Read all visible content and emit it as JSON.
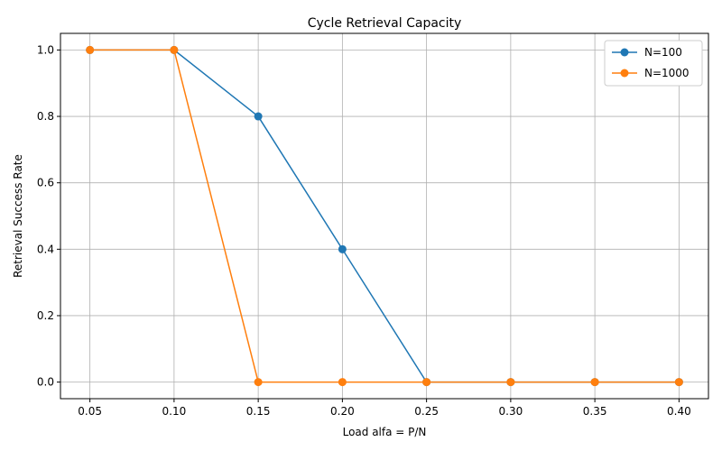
{
  "chart_data": {
    "type": "line",
    "title": "Cycle Retrieval Capacity",
    "xlabel": "Load alfa = P/N",
    "ylabel": "Retrieval Success Rate",
    "x": [
      0.05,
      0.1,
      0.15,
      0.2,
      0.25,
      0.3,
      0.35,
      0.4
    ],
    "x_ticks": [
      "0.05",
      "0.10",
      "0.15",
      "0.20",
      "0.25",
      "0.30",
      "0.35",
      "0.40"
    ],
    "y_ticks": [
      "0.0",
      "0.2",
      "0.4",
      "0.6",
      "0.8",
      "1.0"
    ],
    "xlim": [
      0.0325,
      0.4175
    ],
    "ylim": [
      -0.05,
      1.05
    ],
    "grid": true,
    "legend_position": "top-right",
    "series": [
      {
        "name": "N=100",
        "color": "#1f77b4",
        "values": [
          1.0,
          1.0,
          0.8,
          0.4,
          0.0,
          0.0,
          0.0,
          0.0
        ]
      },
      {
        "name": "N=1000",
        "color": "#ff7f0e",
        "values": [
          1.0,
          1.0,
          0.0,
          0.0,
          0.0,
          0.0,
          0.0,
          0.0
        ]
      }
    ]
  }
}
